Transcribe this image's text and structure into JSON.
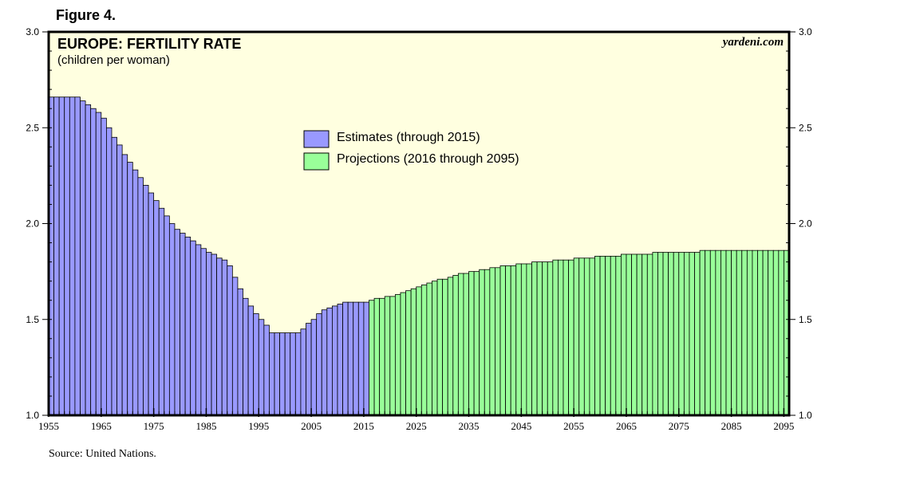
{
  "figure_label": "Figure 4.",
  "source": "Source: United Nations.",
  "watermark": "yardeni.com",
  "colors": {
    "plot_background": "#ffffe0",
    "estimates": "#9999ff",
    "projections": "#99ff99",
    "border": "#000000"
  },
  "chart_data": {
    "type": "bar",
    "title": "EUROPE: FERTILITY RATE",
    "subtitle": "(children per woman)",
    "xlabel": "",
    "ylabel": "",
    "ylim": [
      1.0,
      3.0
    ],
    "xlim": [
      1955,
      2096
    ],
    "y_ticks": [
      "1.0",
      "1.5",
      "2.0",
      "2.5",
      "3.0"
    ],
    "x_ticks": [
      "1955",
      "1965",
      "1975",
      "1985",
      "1995",
      "2005",
      "2015",
      "2025",
      "2035",
      "2045",
      "2055",
      "2065",
      "2075",
      "2085",
      "2095"
    ],
    "legend": [
      "Estimates (through 2015)",
      "Projections (2016 through 2095)"
    ],
    "legend_position": "top-center",
    "series": [
      {
        "name": "Estimates (through 2015)",
        "start_year": 1955,
        "values": [
          2.66,
          2.66,
          2.66,
          2.66,
          2.66,
          2.66,
          2.64,
          2.62,
          2.6,
          2.58,
          2.55,
          2.5,
          2.45,
          2.41,
          2.36,
          2.32,
          2.28,
          2.24,
          2.2,
          2.16,
          2.12,
          2.08,
          2.04,
          2.0,
          1.97,
          1.95,
          1.93,
          1.91,
          1.89,
          1.87,
          1.85,
          1.84,
          1.82,
          1.81,
          1.78,
          1.72,
          1.66,
          1.61,
          1.57,
          1.53,
          1.5,
          1.47,
          1.43,
          1.43,
          1.43,
          1.43,
          1.43,
          1.43,
          1.45,
          1.48,
          1.5,
          1.53,
          1.55,
          1.56,
          1.57,
          1.58,
          1.59,
          1.59,
          1.59,
          1.59,
          1.59
        ]
      },
      {
        "name": "Projections (2016 through 2095)",
        "start_year": 2016,
        "values": [
          1.6,
          1.61,
          1.61,
          1.62,
          1.62,
          1.63,
          1.64,
          1.65,
          1.66,
          1.67,
          1.68,
          1.69,
          1.7,
          1.71,
          1.71,
          1.72,
          1.73,
          1.74,
          1.74,
          1.75,
          1.75,
          1.76,
          1.76,
          1.77,
          1.77,
          1.78,
          1.78,
          1.78,
          1.79,
          1.79,
          1.79,
          1.8,
          1.8,
          1.8,
          1.8,
          1.81,
          1.81,
          1.81,
          1.81,
          1.82,
          1.82,
          1.82,
          1.82,
          1.83,
          1.83,
          1.83,
          1.83,
          1.83,
          1.84,
          1.84,
          1.84,
          1.84,
          1.84,
          1.84,
          1.85,
          1.85,
          1.85,
          1.85,
          1.85,
          1.85,
          1.85,
          1.85,
          1.85,
          1.86,
          1.86,
          1.86,
          1.86,
          1.86,
          1.86,
          1.86,
          1.86,
          1.86,
          1.86,
          1.86,
          1.86,
          1.86,
          1.86,
          1.86,
          1.86,
          1.86
        ]
      }
    ]
  }
}
